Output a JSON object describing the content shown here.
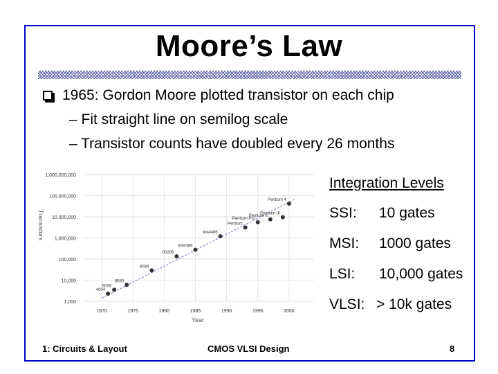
{
  "slide": {
    "title": "Moore’s Law",
    "bullet": "1965: Gordon Moore plotted transistor on each chip",
    "subbullets": [
      "– Fit straight line on semilog scale",
      "– Transistor counts have doubled every 26 months"
    ]
  },
  "integration": {
    "heading": "Integration Levels",
    "levels": [
      {
        "name": "SSI:",
        "value": "10 gates"
      },
      {
        "name": "MSI:",
        "value": "1000 gates"
      },
      {
        "name": "LSI:",
        "value": "10,000 gates"
      },
      {
        "name": "VLSI:",
        "value": "> 10k gates"
      }
    ]
  },
  "footer": {
    "left": "1: Circuits & Layout",
    "center": "CMOS VLSI Design",
    "page": "8"
  },
  "colors": {
    "frame": "#0000cc",
    "fitline": "#7f8fc8",
    "points": "#333333"
  },
  "chart_data": {
    "type": "scatter",
    "xlabel": "Year",
    "ylabel": "Transistors",
    "yscale": "log",
    "xlim": [
      1967,
      2004
    ],
    "ylim": [
      1000,
      1000000000
    ],
    "xticks": [
      "1970",
      "1975",
      "1980",
      "1985",
      "1990",
      "1995",
      "2000"
    ],
    "yticks": [
      "1,000,000,000",
      "100,000,000",
      "10,000,000",
      "1,000,000",
      "100,000",
      "10,000",
      "1,000"
    ],
    "grid": true,
    "trend_line": {
      "from": [
        1970,
        1400
      ],
      "to": [
        2001,
        70000000
      ]
    },
    "points": [
      {
        "label": "4004",
        "x": 1971,
        "y": 2300
      },
      {
        "label": "8008",
        "x": 1972,
        "y": 3500
      },
      {
        "label": "8080",
        "x": 1974,
        "y": 6000
      },
      {
        "label": "8086",
        "x": 1978,
        "y": 29000
      },
      {
        "label": "80286",
        "x": 1982,
        "y": 134000
      },
      {
        "label": "Intel386",
        "x": 1985,
        "y": 275000
      },
      {
        "label": "Intel486",
        "x": 1989,
        "y": 1200000
      },
      {
        "label": "Pentium",
        "x": 1993,
        "y": 3100000
      },
      {
        "label": "Pentium Pro",
        "x": 1995,
        "y": 5500000
      },
      {
        "label": "Pentium II",
        "x": 1997,
        "y": 7500000
      },
      {
        "label": "Pentium III",
        "x": 1999,
        "y": 9500000
      },
      {
        "label": "Pentium 4",
        "x": 2000,
        "y": 42000000
      }
    ]
  }
}
